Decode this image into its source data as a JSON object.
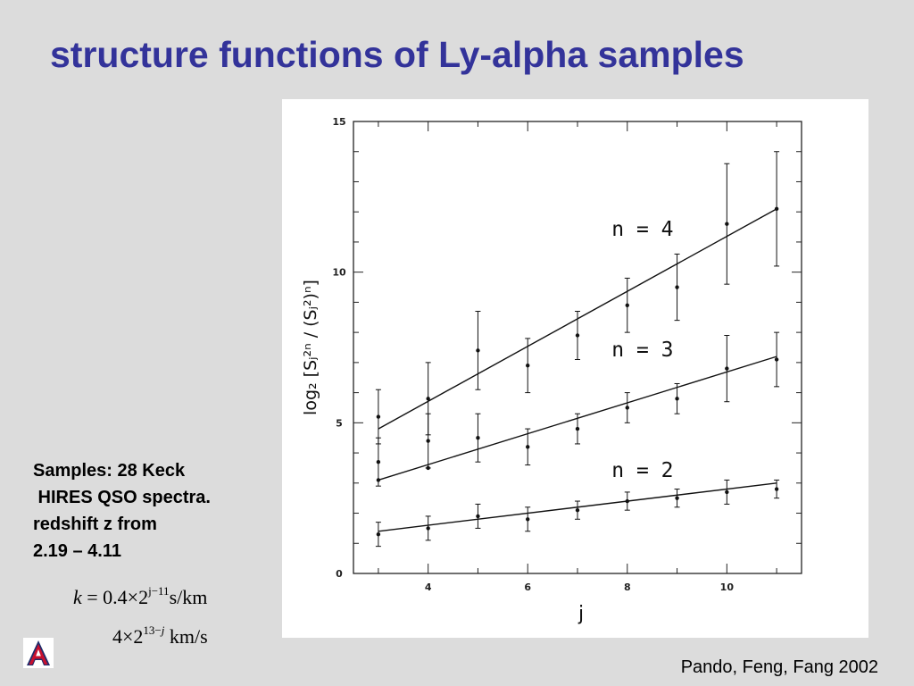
{
  "slide": {
    "title": "structure functions of Ly-alpha samples",
    "notes_lines": [
      "Samples: 28 Keck",
      " HIRES QSO spectra.",
      "redshift z from",
      "2.19 – 4.11"
    ],
    "formula1": {
      "lhs": "k",
      "eq": " = 0.4×2",
      "exp": "j−11",
      "unit": "s/km"
    },
    "formula2": {
      "pre": "4×2",
      "exp": "13−",
      "exp_var": "j",
      "unit": "km/s"
    },
    "citation": "Pando, Feng, Fang 2002",
    "logo_name": "university-logo",
    "colors": {
      "background": "#dcdcdc",
      "title": "#33339a",
      "logo_blue": "#1f2d6b",
      "logo_red": "#c8102e"
    }
  },
  "chart_data": {
    "type": "scatter",
    "title": "",
    "xlabel": "j",
    "ylabel": "log₂ [Sⱼ²ⁿ / (Sⱼ²)ⁿ]",
    "xlim": [
      2.5,
      11.5
    ],
    "ylim": [
      0,
      15
    ],
    "x_ticks": [
      4,
      6,
      8,
      10
    ],
    "y_ticks": [
      0,
      5,
      10,
      15
    ],
    "grid": false,
    "legend": "none",
    "series": [
      {
        "name": "n = 4",
        "x": [
          3,
          4,
          5,
          6,
          7,
          8,
          9,
          10,
          11
        ],
        "y": [
          5.2,
          5.8,
          7.4,
          6.9,
          7.9,
          8.9,
          9.5,
          11.6,
          12.1
        ],
        "err": [
          0.9,
          1.2,
          1.3,
          0.9,
          0.8,
          0.9,
          1.1,
          2.0,
          1.9
        ],
        "fit": [
          4.8,
          12.1
        ]
      },
      {
        "name": "n = 3",
        "x": [
          3,
          4,
          5,
          6,
          7,
          8,
          9,
          10,
          11
        ],
        "y": [
          3.7,
          4.4,
          4.5,
          4.2,
          4.8,
          5.5,
          5.8,
          6.8,
          7.1
        ],
        "err": [
          0.8,
          0.9,
          0.8,
          0.6,
          0.5,
          0.5,
          0.5,
          1.1,
          0.9
        ],
        "fit": [
          3.1,
          7.2
        ]
      },
      {
        "name": "n = 2",
        "x": [
          3,
          4,
          5,
          6,
          7,
          8,
          9,
          10,
          11
        ],
        "y": [
          1.3,
          1.5,
          1.9,
          1.8,
          2.1,
          2.4,
          2.5,
          2.7,
          2.8
        ],
        "err": [
          0.4,
          0.4,
          0.4,
          0.4,
          0.3,
          0.3,
          0.3,
          0.4,
          0.3
        ],
        "fit": [
          1.4,
          3.0
        ]
      }
    ],
    "extra_points": {
      "x": [
        3,
        4
      ],
      "y": [
        3.1,
        3.5
      ]
    },
    "annotations": [
      "n = 4",
      "n = 3",
      "n = 2"
    ]
  }
}
